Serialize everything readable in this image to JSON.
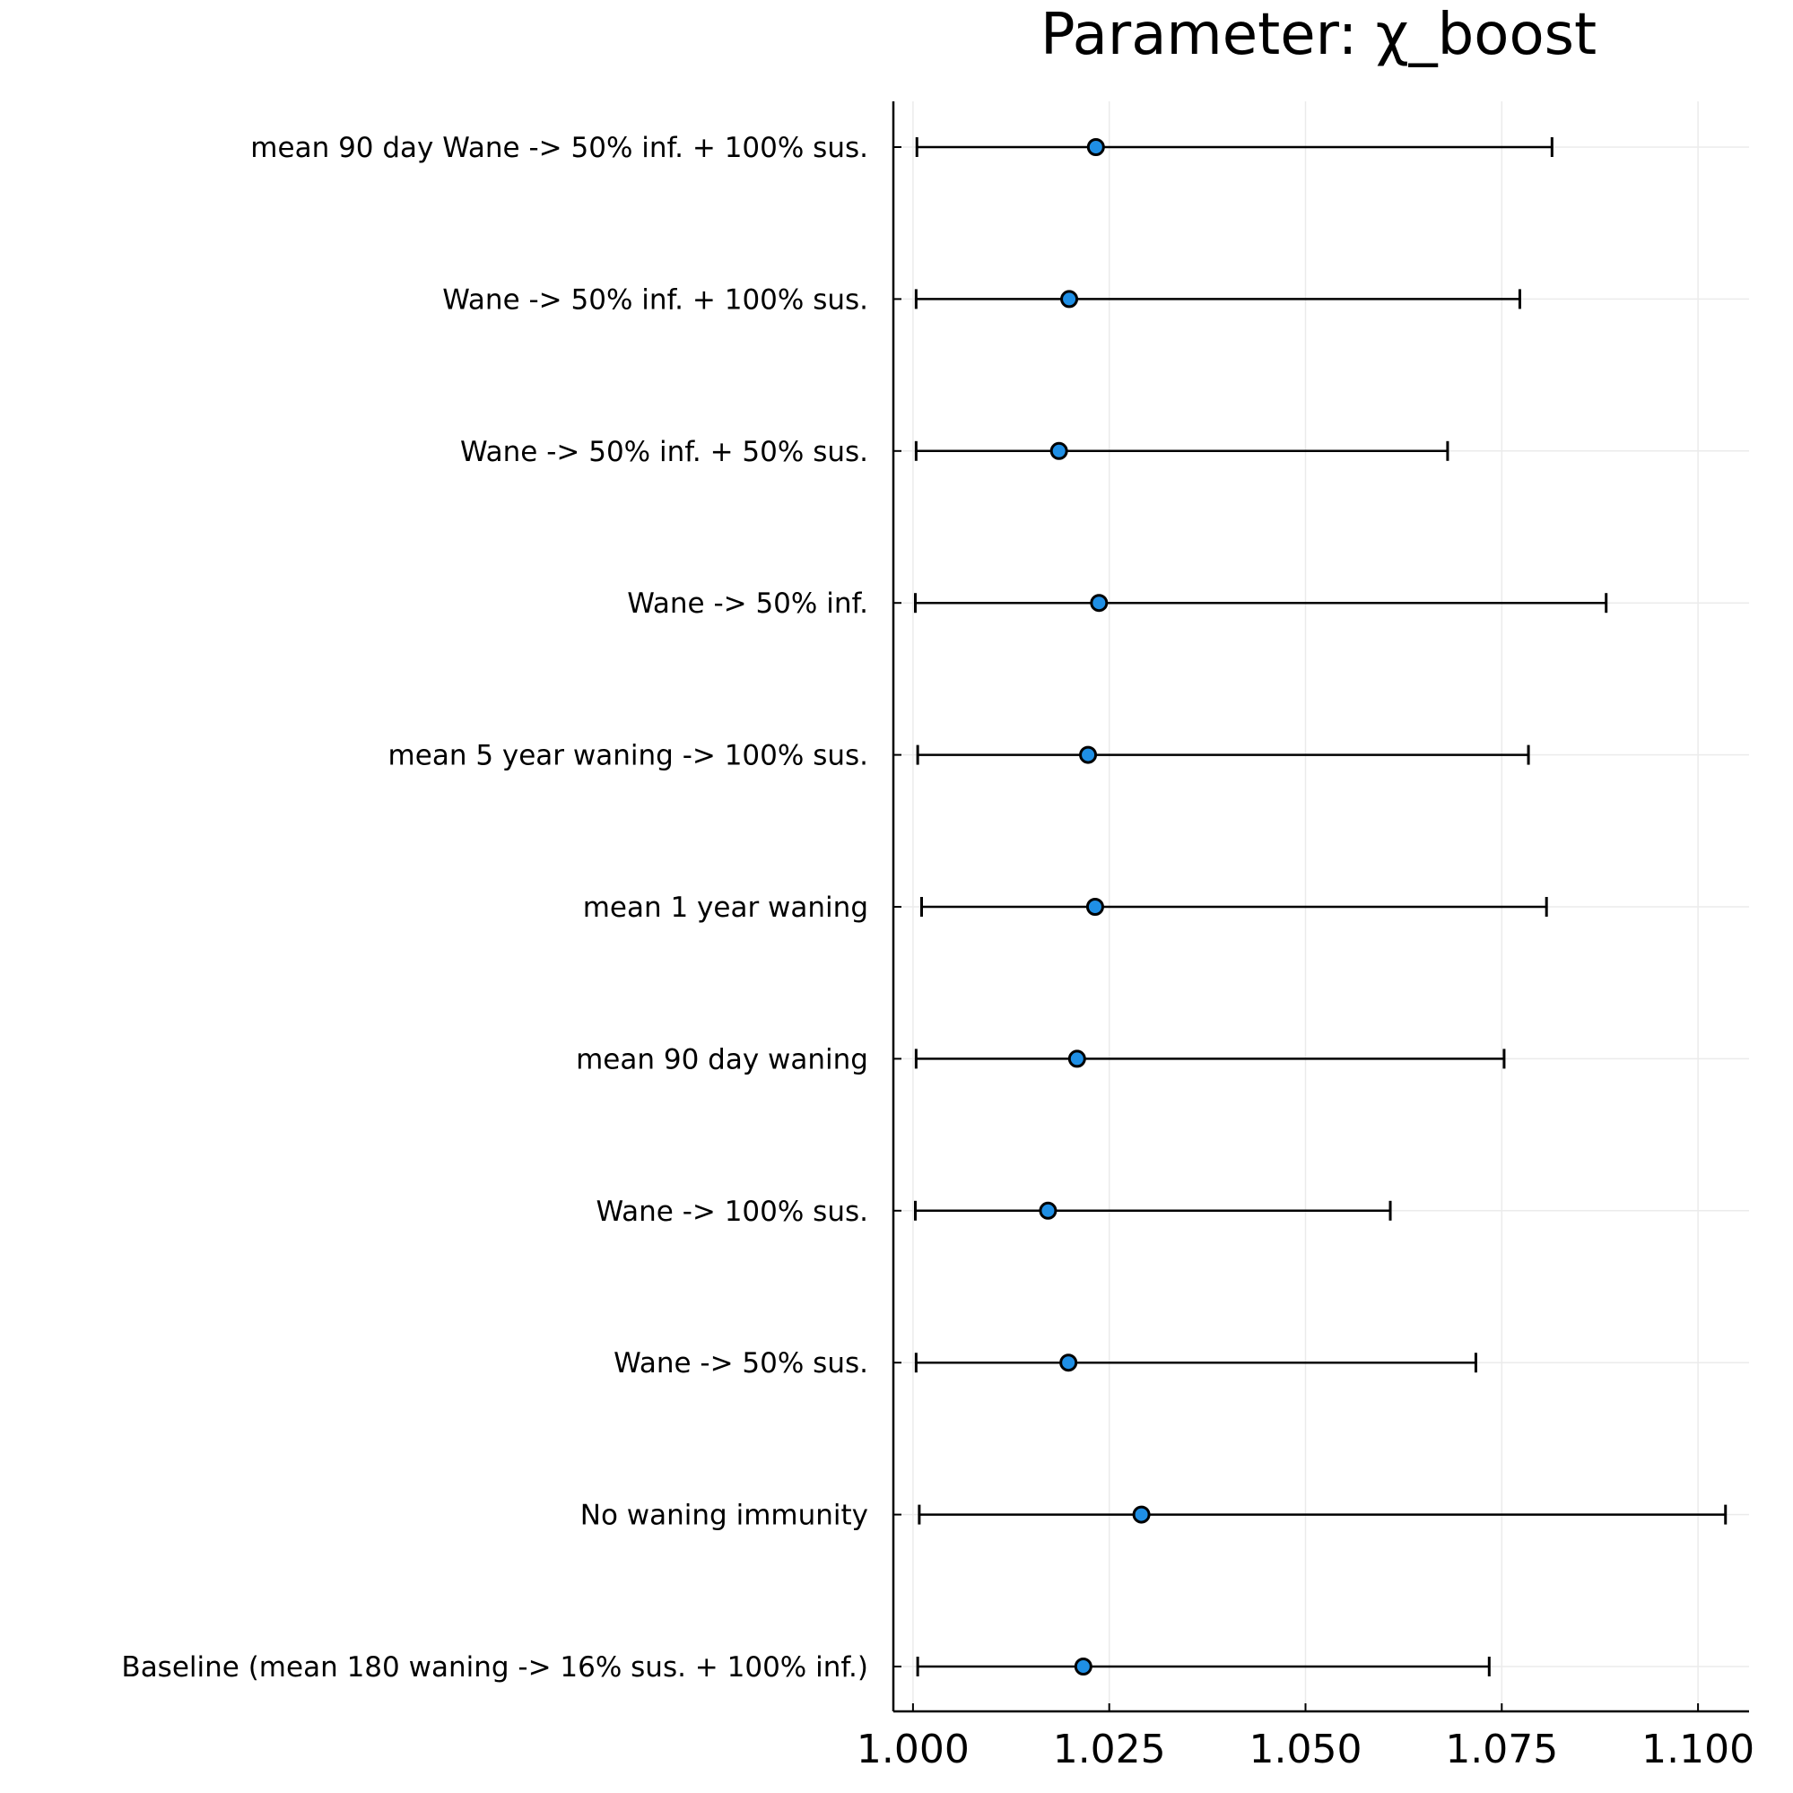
{
  "chart_data": {
    "type": "scatter",
    "subtype": "forest-plot",
    "title": "Parameter: χ_boost",
    "xlabel": "",
    "ylabel": "",
    "xlim": [
      0.9975,
      1.1065
    ],
    "xticks": [
      1.0,
      1.025,
      1.05,
      1.075,
      1.1
    ],
    "xtick_labels": [
      "1.000",
      "1.025",
      "1.050",
      "1.075",
      "1.100"
    ],
    "grid": true,
    "legend": "none",
    "colors": {
      "point_fill": "#1f8fe5",
      "point_stroke": "#000000",
      "interval": "#000000",
      "grid": "#ebebeb",
      "axis": "#000000"
    },
    "categories": [
      "mean 90 day Wane -> 50% inf. + 100% sus.",
      "Wane -> 50% inf. + 100% sus.",
      "Wane -> 50% inf. + 50% sus.",
      "Wane -> 50% inf.",
      "mean 5 year waning -> 100% sus.",
      "mean 1 year waning",
      "mean 90 day waning",
      "Wane -> 100% sus.",
      "Wane -> 50% sus.",
      "No waning immunity",
      "Baseline (mean 180 waning -> 16% sus. + 100% inf.)"
    ],
    "points": [
      {
        "category": "mean 90 day Wane -> 50% inf. + 100% sus.",
        "estimate": 1.0233,
        "lower": 1.0005,
        "upper": 1.0814
      },
      {
        "category": "Wane -> 50% inf. + 100% sus.",
        "estimate": 1.0199,
        "lower": 1.0004,
        "upper": 1.0773
      },
      {
        "category": "Wane -> 50% inf. + 50% sus.",
        "estimate": 1.0186,
        "lower": 1.0004,
        "upper": 1.0681
      },
      {
        "category": "Wane -> 50% inf.",
        "estimate": 1.0237,
        "lower": 1.0003,
        "upper": 1.0883
      },
      {
        "category": "mean 5 year waning -> 100% sus.",
        "estimate": 1.0223,
        "lower": 1.0006,
        "upper": 1.0784
      },
      {
        "category": "mean 1 year waning",
        "estimate": 1.0232,
        "lower": 1.0011,
        "upper": 1.0807
      },
      {
        "category": "mean 90 day waning",
        "estimate": 1.0209,
        "lower": 1.0004,
        "upper": 1.0753
      },
      {
        "category": "Wane -> 100% sus.",
        "estimate": 1.0172,
        "lower": 1.0003,
        "upper": 1.0608
      },
      {
        "category": "Wane -> 50% sus.",
        "estimate": 1.0198,
        "lower": 1.0004,
        "upper": 1.0717
      },
      {
        "category": "No waning immunity",
        "estimate": 1.0291,
        "lower": 1.0008,
        "upper": 1.1035
      },
      {
        "category": "Baseline (mean 180 waning -> 16% sus. + 100% inf.)",
        "estimate": 1.0217,
        "lower": 1.0006,
        "upper": 1.0734
      }
    ]
  }
}
